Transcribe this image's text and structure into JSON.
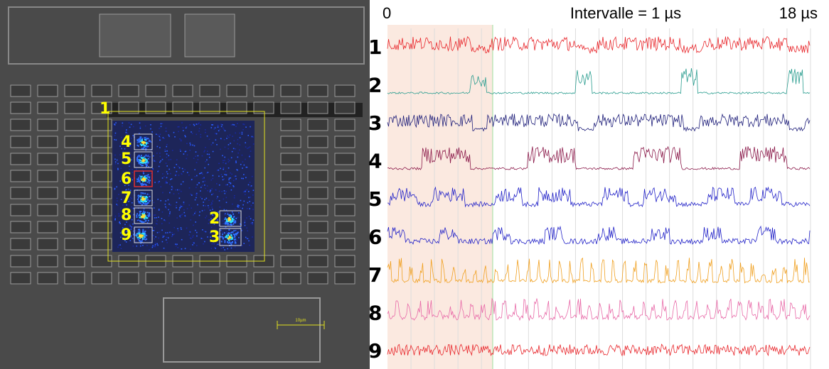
{
  "image": {
    "regions": [
      {
        "label": "1"
      },
      {
        "label": "2"
      },
      {
        "label": "3"
      },
      {
        "label": "4"
      },
      {
        "label": "5"
      },
      {
        "label": "6"
      },
      {
        "label": "7"
      },
      {
        "label": "8"
      },
      {
        "label": "9"
      }
    ],
    "scale_bar": "10µm"
  },
  "traces_panel": {
    "start_label": "0",
    "interval_label": "Intervalle = 1 µs",
    "end_label": "18 µs",
    "traces": [
      {
        "label": "1",
        "color": "#e8262b"
      },
      {
        "label": "2",
        "color": "#2a9d8f"
      },
      {
        "label": "3",
        "color": "#1f1f7a"
      },
      {
        "label": "4",
        "color": "#8b1a4a"
      },
      {
        "label": "5",
        "color": "#2323c8"
      },
      {
        "label": "6",
        "color": "#2323c8"
      },
      {
        "label": "7",
        "color": "#f0a020"
      },
      {
        "label": "8",
        "color": "#e86aa8"
      },
      {
        "label": "9",
        "color": "#e8262b"
      }
    ]
  }
}
